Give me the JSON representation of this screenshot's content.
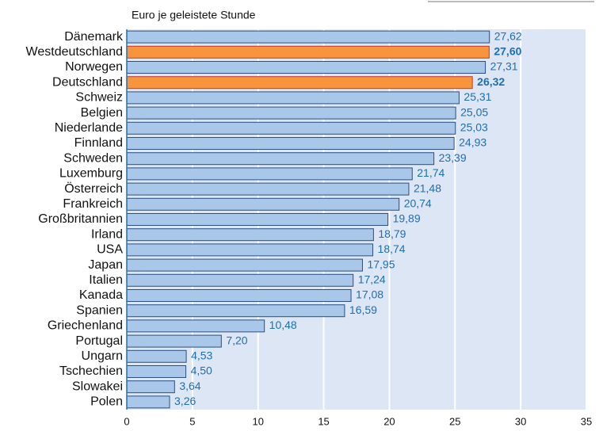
{
  "chart_data": {
    "type": "bar",
    "orientation": "horizontal",
    "axis_label": "Euro je geleistete Stunde",
    "categories": [
      "Dänemark",
      "Westdeutschland",
      "Norwegen",
      "Deutschland",
      "Schweiz",
      "Belgien",
      "Niederlande",
      "Finnland",
      "Schweden",
      "Luxemburg",
      "Österreich",
      "Frankreich",
      "Großbritannien",
      "Irland",
      "USA",
      "Japan",
      "Italien",
      "Kanada",
      "Spanien",
      "Griechenland",
      "Portugal",
      "Ungarn",
      "Tschechien",
      "Slowakei",
      "Polen"
    ],
    "values": [
      27.62,
      27.6,
      27.31,
      26.32,
      25.31,
      25.05,
      25.03,
      24.93,
      23.39,
      21.74,
      21.48,
      20.74,
      19.89,
      18.79,
      18.74,
      17.95,
      17.24,
      17.08,
      16.59,
      10.48,
      7.2,
      4.53,
      4.5,
      3.64,
      3.26
    ],
    "value_labels": [
      "27,62",
      "27,60",
      "27,31",
      "26,32",
      "25,31",
      "25,05",
      "25,03",
      "24,93",
      "23,39",
      "21,74",
      "21,48",
      "20,74",
      "19,89",
      "18,79",
      "18,74",
      "17,95",
      "17,24",
      "17,08",
      "16,59",
      "10,48",
      "7,20",
      "4,53",
      "4,50",
      "3,64",
      "3,26"
    ],
    "color": "#a9c7e8",
    "highlight_color": "#f7943c",
    "highlight": [
      1,
      3
    ],
    "xlim": [
      0,
      35
    ],
    "xticks": [
      0,
      5,
      10,
      15,
      20,
      25,
      30,
      35
    ],
    "grid": true
  }
}
